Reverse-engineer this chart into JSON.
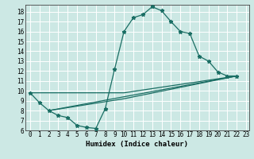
{
  "title": "",
  "xlabel": "Humidex (Indice chaleur)",
  "bg_color": "#cce8e4",
  "line_color": "#1a6e64",
  "grid_color": "#ffffff",
  "marker": "*",
  "xlim_min": -0.5,
  "xlim_max": 23.3,
  "ylim_min": 6.0,
  "ylim_max": 18.7,
  "xticks": [
    0,
    1,
    2,
    3,
    4,
    5,
    6,
    7,
    8,
    9,
    10,
    11,
    12,
    13,
    14,
    15,
    16,
    17,
    18,
    19,
    20,
    21,
    22,
    23
  ],
  "yticks": [
    6,
    7,
    8,
    9,
    10,
    11,
    12,
    13,
    14,
    15,
    16,
    17,
    18
  ],
  "series": [
    [
      [
        0,
        9.8
      ],
      [
        1,
        8.8
      ],
      [
        2,
        8.0
      ],
      [
        3,
        7.5
      ],
      [
        4,
        7.3
      ],
      [
        5,
        6.5
      ],
      [
        6,
        6.3
      ],
      [
        7,
        6.2
      ],
      [
        8,
        8.2
      ],
      [
        9,
        12.2
      ],
      [
        10,
        16.0
      ],
      [
        11,
        17.4
      ],
      [
        12,
        17.7
      ],
      [
        13,
        18.5
      ],
      [
        14,
        18.1
      ],
      [
        15,
        17.0
      ],
      [
        16,
        16.0
      ],
      [
        17,
        15.8
      ],
      [
        18,
        13.5
      ],
      [
        19,
        13.0
      ],
      [
        20,
        11.9
      ],
      [
        21,
        11.5
      ],
      [
        22,
        11.5
      ]
    ],
    [
      [
        0,
        9.8
      ],
      [
        10,
        9.8
      ],
      [
        22,
        11.5
      ]
    ],
    [
      [
        2,
        8.0
      ],
      [
        10,
        9.2
      ],
      [
        22,
        11.5
      ]
    ],
    [
      [
        2,
        8.0
      ],
      [
        22,
        11.5
      ]
    ]
  ],
  "xlabel_fontsize": 6.5,
  "tick_fontsize": 5.5
}
